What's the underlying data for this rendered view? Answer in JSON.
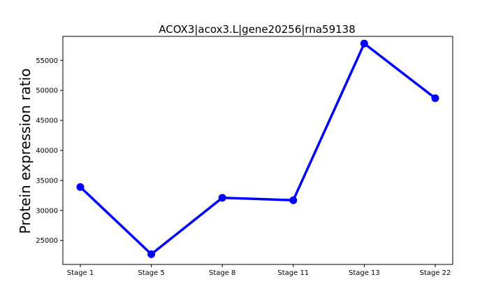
{
  "chart_data": {
    "type": "line",
    "title": "ACOX3|acox3.L|gene20256|rna59138",
    "xlabel": "",
    "ylabel": "Protein expression ratio",
    "categories": [
      "Stage 1",
      "Stage 5",
      "Stage 8",
      "Stage 11",
      "Stage 13",
      "Stage 22"
    ],
    "series": [
      {
        "values": [
          33900,
          22700,
          32100,
          31700,
          57800,
          48700
        ],
        "color": "#0000ff"
      }
    ],
    "yticks": [
      25000,
      30000,
      35000,
      40000,
      45000,
      50000,
      55000
    ],
    "ylim": [
      21000,
      59000
    ],
    "grid": false,
    "legend": "none"
  }
}
